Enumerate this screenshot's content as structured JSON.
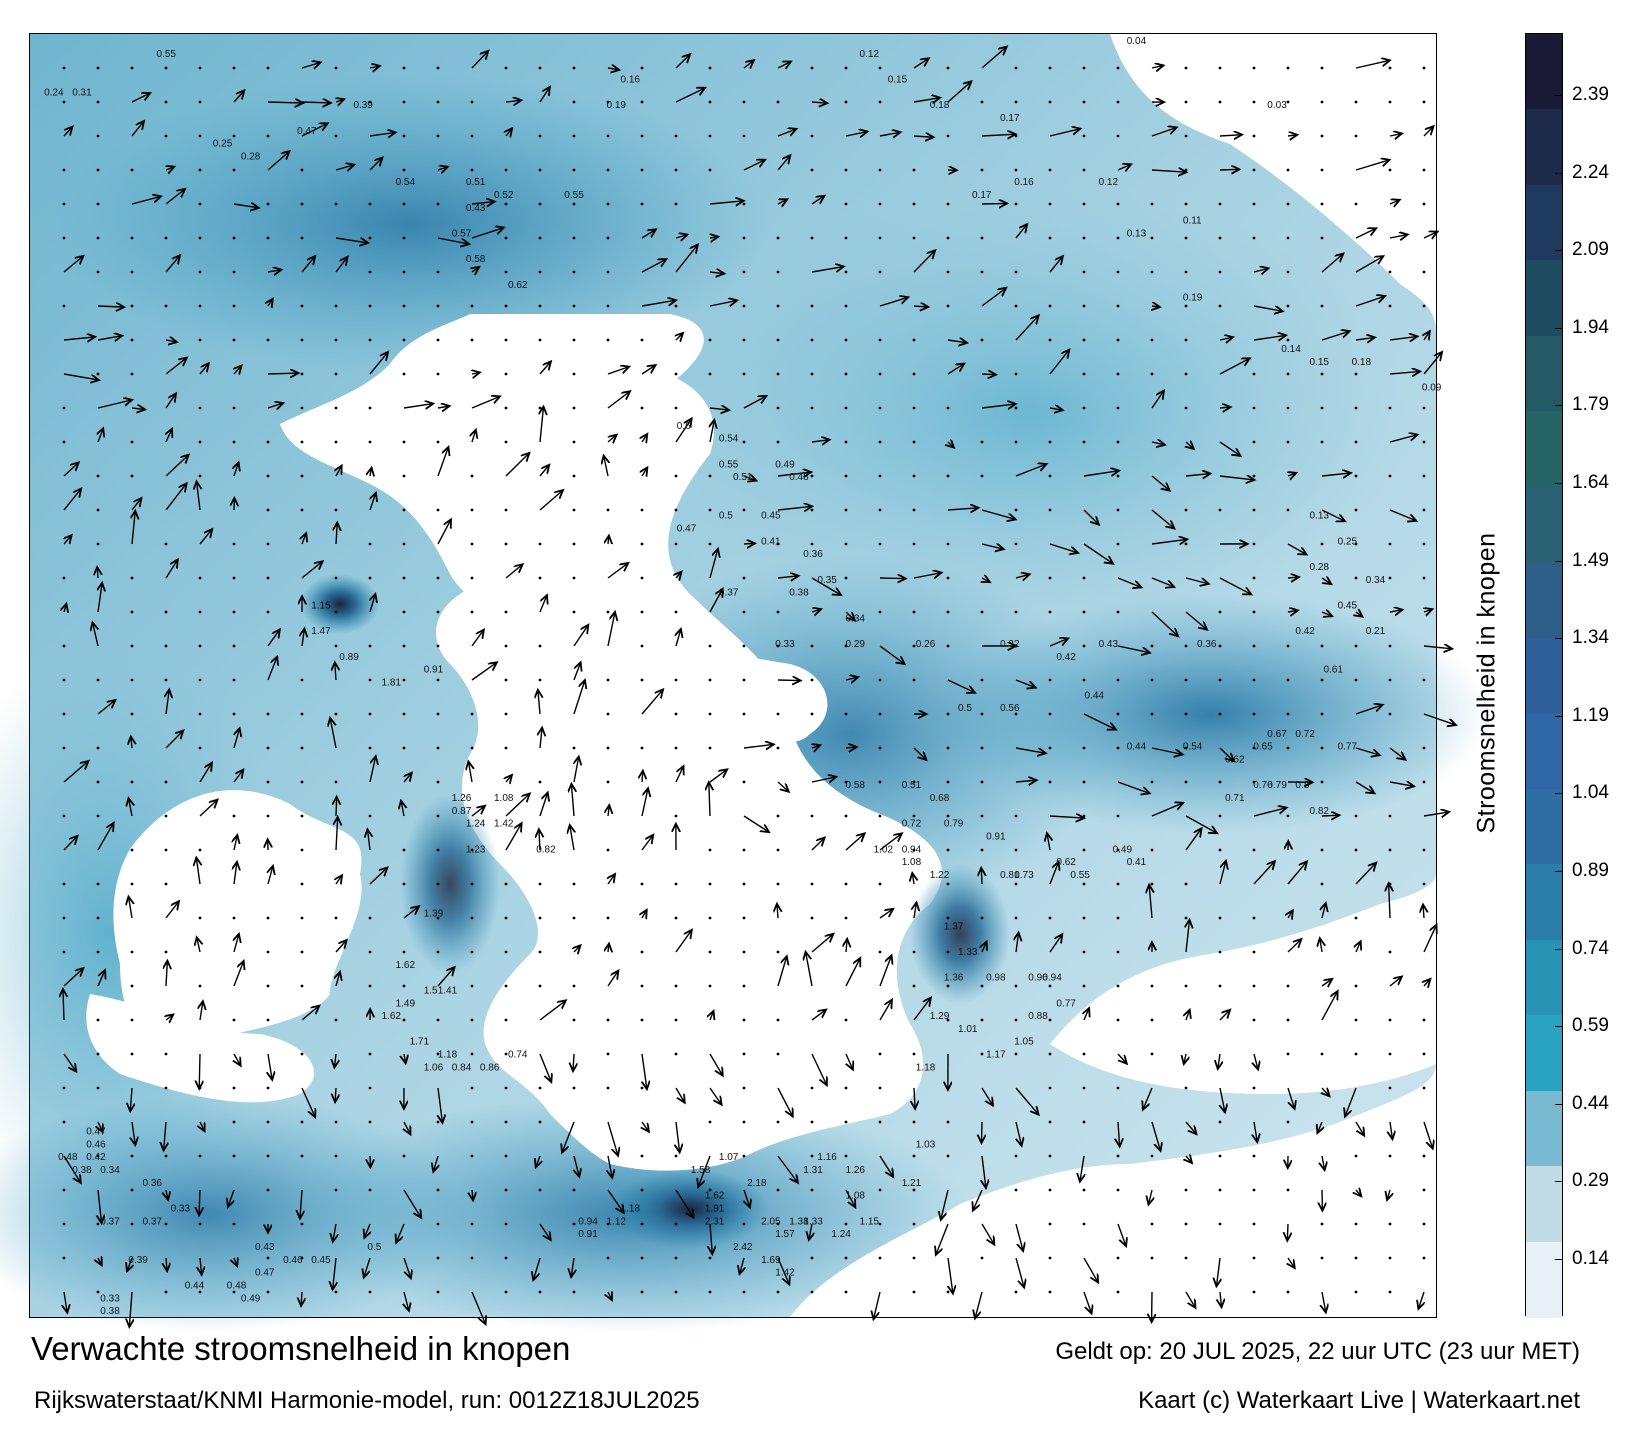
{
  "title": "Verwachte stroomsnelheid in knopen",
  "subtitle": "Rijkswaterstaat/KNMI Harmonie-model, run: 0012Z18JUL2025",
  "valid_time": "Geldt op: 20 JUL 2025, 22 uur UTC (23 uur MET)",
  "credit": "Kaart (c) Waterkaart Live | Waterkaart.net",
  "colorbar": {
    "title": "Stroomsnelheid in knopen",
    "ticks": [
      "2.39",
      "2.24",
      "2.09",
      "1.94",
      "1.79",
      "1.64",
      "1.49",
      "1.34",
      "1.19",
      "1.04",
      "0.89",
      "0.74",
      "0.59",
      "0.44",
      "0.29",
      "0.14"
    ],
    "colors": [
      "#1b1a36",
      "#1d2a4a",
      "#1e3a5c",
      "#1f4c60",
      "#245966",
      "#266468",
      "#2a6273",
      "#2d5e88",
      "#2f5f9b",
      "#3067a6",
      "#2f6ea5",
      "#2a7ea8",
      "#2993b4",
      "#2aa3c1",
      "#79bad0",
      "#c0dce6",
      "#e6f0f5"
    ],
    "max": 2.5,
    "min": 0
  },
  "map": {
    "velocity_labels": [
      {
        "text": "0.55",
        "lon": 0.09,
        "lat": 0.01
      },
      {
        "text": "0.24",
        "lon": 0.01,
        "lat": 0.04
      },
      {
        "text": "0.31",
        "lon": 0.03,
        "lat": 0.04
      },
      {
        "text": "0.28",
        "lon": 0.15,
        "lat": 0.09
      },
      {
        "text": "0.25",
        "lon": 0.13,
        "lat": 0.08
      },
      {
        "text": "0.39",
        "lon": 0.23,
        "lat": 0.05
      },
      {
        "text": "0.47",
        "lon": 0.19,
        "lat": 0.07
      },
      {
        "text": "0.54",
        "lon": 0.26,
        "lat": 0.11
      },
      {
        "text": "0.51",
        "lon": 0.31,
        "lat": 0.11
      },
      {
        "text": "0.52",
        "lon": 0.33,
        "lat": 0.12
      },
      {
        "text": "0.55",
        "lon": 0.38,
        "lat": 0.12
      },
      {
        "text": "0.43",
        "lon": 0.31,
        "lat": 0.13
      },
      {
        "text": "0.57",
        "lon": 0.3,
        "lat": 0.15
      },
      {
        "text": "0.58",
        "lon": 0.31,
        "lat": 0.17
      },
      {
        "text": "0.62",
        "lon": 0.34,
        "lat": 0.19
      },
      {
        "text": "0.16",
        "lon": 0.42,
        "lat": 0.03
      },
      {
        "text": "0.19",
        "lon": 0.41,
        "lat": 0.05
      },
      {
        "text": "0.12",
        "lon": 0.59,
        "lat": 0.01
      },
      {
        "text": "0.15",
        "lon": 0.61,
        "lat": 0.03
      },
      {
        "text": "0.18",
        "lon": 0.64,
        "lat": 0.05
      },
      {
        "text": "0.17",
        "lon": 0.69,
        "lat": 0.06
      },
      {
        "text": "0.16",
        "lon": 0.7,
        "lat": 0.11
      },
      {
        "text": "0.17",
        "lon": 0.67,
        "lat": 0.12
      },
      {
        "text": "0.12",
        "lon": 0.76,
        "lat": 0.11
      },
      {
        "text": "0.13",
        "lon": 0.78,
        "lat": 0.15
      },
      {
        "text": "0.11",
        "lon": 0.82,
        "lat": 0.14
      },
      {
        "text": "0.19",
        "lon": 0.82,
        "lat": 0.2
      },
      {
        "text": "0.14",
        "lon": 0.89,
        "lat": 0.24
      },
      {
        "text": "0.15",
        "lon": 0.91,
        "lat": 0.25
      },
      {
        "text": "0.18",
        "lon": 0.94,
        "lat": 0.25
      },
      {
        "text": "0.6",
        "lon": 0.46,
        "lat": 0.3
      },
      {
        "text": "0.54",
        "lon": 0.49,
        "lat": 0.31
      },
      {
        "text": "0.55",
        "lon": 0.49,
        "lat": 0.33
      },
      {
        "text": "0.51",
        "lon": 0.5,
        "lat": 0.34
      },
      {
        "text": "0.49",
        "lon": 0.53,
        "lat": 0.33
      },
      {
        "text": "0.48",
        "lon": 0.54,
        "lat": 0.34
      },
      {
        "text": "0.47",
        "lon": 0.46,
        "lat": 0.38
      },
      {
        "text": "0.5",
        "lon": 0.49,
        "lat": 0.37
      },
      {
        "text": "0.45",
        "lon": 0.52,
        "lat": 0.37
      },
      {
        "text": "0.41",
        "lon": 0.52,
        "lat": 0.39
      },
      {
        "text": "0.36",
        "lon": 0.55,
        "lat": 0.4
      },
      {
        "text": "0.35",
        "lon": 0.56,
        "lat": 0.42
      },
      {
        "text": "0.37",
        "lon": 0.49,
        "lat": 0.43
      },
      {
        "text": "0.38",
        "lon": 0.54,
        "lat": 0.43
      },
      {
        "text": "0.34",
        "lon": 0.58,
        "lat": 0.45
      },
      {
        "text": "0.33",
        "lon": 0.53,
        "lat": 0.47
      },
      {
        "text": "0.29",
        "lon": 0.58,
        "lat": 0.47
      },
      {
        "text": "0.26",
        "lon": 0.63,
        "lat": 0.47
      },
      {
        "text": "0.32",
        "lon": 0.69,
        "lat": 0.47
      },
      {
        "text": "0.42",
        "lon": 0.73,
        "lat": 0.48
      },
      {
        "text": "0.43",
        "lon": 0.76,
        "lat": 0.47
      },
      {
        "text": "0.36",
        "lon": 0.83,
        "lat": 0.47
      },
      {
        "text": "0.42",
        "lon": 0.9,
        "lat": 0.46
      },
      {
        "text": "0.61",
        "lon": 0.92,
        "lat": 0.49
      },
      {
        "text": "0.44",
        "lon": 0.75,
        "lat": 0.51
      },
      {
        "text": "0.56",
        "lon": 0.69,
        "lat": 0.52
      },
      {
        "text": "0.5",
        "lon": 0.66,
        "lat": 0.52
      },
      {
        "text": "0.44",
        "lon": 0.78,
        "lat": 0.55
      },
      {
        "text": "0.54",
        "lon": 0.82,
        "lat": 0.55
      },
      {
        "text": "0.62",
        "lon": 0.85,
        "lat": 0.56
      },
      {
        "text": "0.65",
        "lon": 0.87,
        "lat": 0.55
      },
      {
        "text": "0.67",
        "lon": 0.88,
        "lat": 0.54
      },
      {
        "text": "0.72",
        "lon": 0.9,
        "lat": 0.54
      },
      {
        "text": "0.77",
        "lon": 0.93,
        "lat": 0.55
      },
      {
        "text": "0.71",
        "lon": 0.85,
        "lat": 0.59
      },
      {
        "text": "0.76",
        "lon": 0.87,
        "lat": 0.58
      },
      {
        "text": "0.79",
        "lon": 0.88,
        "lat": 0.58
      },
      {
        "text": "0.82",
        "lon": 0.91,
        "lat": 0.6
      },
      {
        "text": "0.8",
        "lon": 0.9,
        "lat": 0.58
      },
      {
        "text": "0.58",
        "lon": 0.58,
        "lat": 0.58
      },
      {
        "text": "0.51",
        "lon": 0.62,
        "lat": 0.58
      },
      {
        "text": "0.68",
        "lon": 0.64,
        "lat": 0.59
      },
      {
        "text": "0.72",
        "lon": 0.62,
        "lat": 0.61
      },
      {
        "text": "0.79",
        "lon": 0.65,
        "lat": 0.61
      },
      {
        "text": "0.91",
        "lon": 0.68,
        "lat": 0.62
      },
      {
        "text": "0.94",
        "lon": 0.62,
        "lat": 0.63
      },
      {
        "text": "1.02",
        "lon": 0.6,
        "lat": 0.63
      },
      {
        "text": "1.08",
        "lon": 0.62,
        "lat": 0.64
      },
      {
        "text": "1.22",
        "lon": 0.64,
        "lat": 0.65
      },
      {
        "text": "1.37",
        "lon": 0.65,
        "lat": 0.69
      },
      {
        "text": "1.33",
        "lon": 0.66,
        "lat": 0.71
      },
      {
        "text": "1.36",
        "lon": 0.65,
        "lat": 0.73
      },
      {
        "text": "1.29",
        "lon": 0.64,
        "lat": 0.76
      },
      {
        "text": "1.01",
        "lon": 0.66,
        "lat": 0.77
      },
      {
        "text": "1.18",
        "lon": 0.63,
        "lat": 0.8
      },
      {
        "text": "1.17",
        "lon": 0.68,
        "lat": 0.79
      },
      {
        "text": "1.03",
        "lon": 0.63,
        "lat": 0.86
      },
      {
        "text": "0.98",
        "lon": 0.68,
        "lat": 0.73
      },
      {
        "text": "0.96",
        "lon": 0.71,
        "lat": 0.73
      },
      {
        "text": "0.94",
        "lon": 0.72,
        "lat": 0.73
      },
      {
        "text": "0.77",
        "lon": 0.73,
        "lat": 0.75
      },
      {
        "text": "0.88",
        "lon": 0.71,
        "lat": 0.76
      },
      {
        "text": "1.05",
        "lon": 0.7,
        "lat": 0.78
      },
      {
        "text": "0.81",
        "lon": 0.69,
        "lat": 0.65
      },
      {
        "text": "0.73",
        "lon": 0.7,
        "lat": 0.65
      },
      {
        "text": "0.62",
        "lon": 0.73,
        "lat": 0.64
      },
      {
        "text": "0.55",
        "lon": 0.74,
        "lat": 0.65
      },
      {
        "text": "0.49",
        "lon": 0.77,
        "lat": 0.63
      },
      {
        "text": "0.41",
        "lon": 0.78,
        "lat": 0.64
      },
      {
        "text": "1.15",
        "lon": 0.2,
        "lat": 0.44
      },
      {
        "text": "1.47",
        "lon": 0.2,
        "lat": 0.46
      },
      {
        "text": "1.81",
        "lon": 0.25,
        "lat": 0.5
      },
      {
        "text": "0.91",
        "lon": 0.28,
        "lat": 0.49
      },
      {
        "text": "0.89",
        "lon": 0.22,
        "lat": 0.48
      },
      {
        "text": "1.26",
        "lon": 0.3,
        "lat": 0.59
      },
      {
        "text": "1.42",
        "lon": 0.33,
        "lat": 0.61
      },
      {
        "text": "1.24",
        "lon": 0.31,
        "lat": 0.61
      },
      {
        "text": "1.08",
        "lon": 0.33,
        "lat": 0.59
      },
      {
        "text": "1.23",
        "lon": 0.31,
        "lat": 0.63
      },
      {
        "text": "0.82",
        "lon": 0.36,
        "lat": 0.63
      },
      {
        "text": "0.87",
        "lon": 0.3,
        "lat": 0.6
      },
      {
        "text": "1.39",
        "lon": 0.28,
        "lat": 0.68
      },
      {
        "text": "1.62",
        "lon": 0.26,
        "lat": 0.72
      },
      {
        "text": "1.49",
        "lon": 0.26,
        "lat": 0.75
      },
      {
        "text": "1.62",
        "lon": 0.25,
        "lat": 0.76
      },
      {
        "text": "1.5",
        "lon": 0.28,
        "lat": 0.74
      },
      {
        "text": "1.41",
        "lon": 0.29,
        "lat": 0.74
      },
      {
        "text": "1.71",
        "lon": 0.27,
        "lat": 0.78
      },
      {
        "text": "1.18",
        "lon": 0.29,
        "lat": 0.79
      },
      {
        "text": "1.06",
        "lon": 0.28,
        "lat": 0.8
      },
      {
        "text": "0.84",
        "lon": 0.3,
        "lat": 0.8
      },
      {
        "text": "0.86",
        "lon": 0.32,
        "lat": 0.8
      },
      {
        "text": "0.74",
        "lon": 0.34,
        "lat": 0.79
      },
      {
        "text": "1.07",
        "lon": 0.49,
        "lat": 0.87
      },
      {
        "text": "1.58",
        "lon": 0.47,
        "lat": 0.88
      },
      {
        "text": "1.62",
        "lon": 0.48,
        "lat": 0.9
      },
      {
        "text": "1.91",
        "lon": 0.48,
        "lat": 0.91
      },
      {
        "text": "2.18",
        "lon": 0.51,
        "lat": 0.89
      },
      {
        "text": "2.31",
        "lon": 0.48,
        "lat": 0.92
      },
      {
        "text": "2.42",
        "lon": 0.5,
        "lat": 0.94
      },
      {
        "text": "2.05",
        "lon": 0.52,
        "lat": 0.92
      },
      {
        "text": "1.38",
        "lon": 0.54,
        "lat": 0.92
      },
      {
        "text": "1.57",
        "lon": 0.53,
        "lat": 0.93
      },
      {
        "text": "1.33",
        "lon": 0.55,
        "lat": 0.92
      },
      {
        "text": "1.24",
        "lon": 0.57,
        "lat": 0.93
      },
      {
        "text": "1.16",
        "lon": 0.56,
        "lat": 0.87
      },
      {
        "text": "1.31",
        "lon": 0.55,
        "lat": 0.88
      },
      {
        "text": "1.26",
        "lon": 0.58,
        "lat": 0.88
      },
      {
        "text": "1.08",
        "lon": 0.58,
        "lat": 0.9
      },
      {
        "text": "1.15",
        "lon": 0.59,
        "lat": 0.92
      },
      {
        "text": "1.21",
        "lon": 0.62,
        "lat": 0.89
      },
      {
        "text": "0.94",
        "lon": 0.39,
        "lat": 0.92
      },
      {
        "text": "0.91",
        "lon": 0.39,
        "lat": 0.93
      },
      {
        "text": "1.12",
        "lon": 0.41,
        "lat": 0.92
      },
      {
        "text": "1.18",
        "lon": 0.42,
        "lat": 0.91
      },
      {
        "text": "1.42",
        "lon": 0.53,
        "lat": 0.96
      },
      {
        "text": "1.69",
        "lon": 0.52,
        "lat": 0.95
      },
      {
        "text": "0.47",
        "lon": 0.04,
        "lat": 0.85
      },
      {
        "text": "0.46",
        "lon": 0.04,
        "lat": 0.86
      },
      {
        "text": "0.42",
        "lon": 0.04,
        "lat": 0.87
      },
      {
        "text": "0.48",
        "lon": 0.02,
        "lat": 0.87
      },
      {
        "text": "0.38",
        "lon": 0.03,
        "lat": 0.88
      },
      {
        "text": "0.34",
        "lon": 0.05,
        "lat": 0.88
      },
      {
        "text": "0.36",
        "lon": 0.08,
        "lat": 0.89
      },
      {
        "text": "0.33",
        "lon": 0.1,
        "lat": 0.91
      },
      {
        "text": "0.37",
        "lon": 0.08,
        "lat": 0.92
      },
      {
        "text": "0.39",
        "lon": 0.07,
        "lat": 0.95
      },
      {
        "text": "0.44",
        "lon": 0.11,
        "lat": 0.97
      },
      {
        "text": "0.48",
        "lon": 0.14,
        "lat": 0.97
      },
      {
        "text": "0.47",
        "lon": 0.16,
        "lat": 0.96
      },
      {
        "text": "0.49",
        "lon": 0.15,
        "lat": 0.98
      },
      {
        "text": "0.43",
        "lon": 0.16,
        "lat": 0.94
      },
      {
        "text": "0.46",
        "lon": 0.18,
        "lat": 0.95
      },
      {
        "text": "0.45",
        "lon": 0.2,
        "lat": 0.95
      },
      {
        "text": "0.5",
        "lon": 0.24,
        "lat": 0.94
      },
      {
        "text": "0.37",
        "lon": 0.05,
        "lat": 0.92
      },
      {
        "text": "0.33",
        "lon": 0.05,
        "lat": 0.98
      },
      {
        "text": "0.38",
        "lon": 0.05,
        "lat": 0.99
      },
      {
        "text": "0.13",
        "lon": 0.91,
        "lat": 0.37
      },
      {
        "text": "0.25",
        "lon": 0.93,
        "lat": 0.39
      },
      {
        "text": "0.28",
        "lon": 0.91,
        "lat": 0.41
      },
      {
        "text": "0.34",
        "lon": 0.95,
        "lat": 0.42
      },
      {
        "text": "0.45",
        "lon": 0.93,
        "lat": 0.44
      },
      {
        "text": "0.21",
        "lon": 0.95,
        "lat": 0.46
      },
      {
        "text": "0.04",
        "lon": 0.78,
        "lat": 0.0
      },
      {
        "text": "0.03",
        "lon": 0.88,
        "lat": 0.05
      },
      {
        "text": "0.09",
        "lon": 0.99,
        "lat": 0.27
      }
    ]
  }
}
